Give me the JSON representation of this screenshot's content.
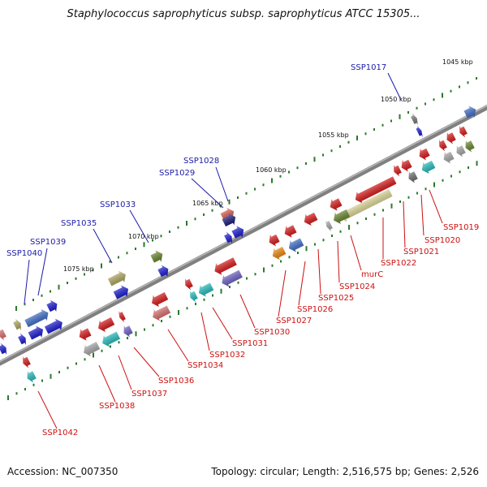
{
  "title": "Staphylococcus saprophyticus subsp. saprophyticus ATCC 15305...",
  "footer": {
    "accession": "Accession: NC_007350",
    "summary": "Topology: circular; Length: 2,516,575 bp; Genes: 2,526"
  },
  "colors": {
    "plus_label": "#1a1aa8",
    "minus_label": "#cc1010",
    "backbone": "#808080",
    "ticks": "#2a7a2a"
  },
  "scale_labels": [
    "1045 kbp",
    "1050 kbp",
    "1055 kbp",
    "1060 kbp",
    "1065 kbp",
    "1070 kbp",
    "1075 kbp"
  ],
  "plus_strand_labels": [
    "SSP1017",
    "SSP1028",
    "SSP1029",
    "SSP1033",
    "SSP1035",
    "SSP1039",
    "SSP1040"
  ],
  "minus_strand_labels": [
    "SSP1019",
    "SSP1020",
    "SSP1021",
    "SSP1022",
    "murC",
    "SSP1024",
    "SSP1025",
    "SSP1026",
    "SSP1027",
    "SSP1030",
    "SSP1031",
    "SSP1032",
    "SSP1034",
    "SSP1036",
    "SSP1037",
    "SSP1038",
    "SSP1042"
  ]
}
